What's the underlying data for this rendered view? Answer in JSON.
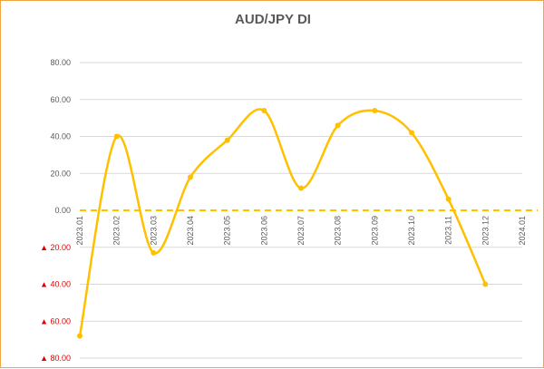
{
  "chart_data": {
    "type": "line",
    "title": "AUD/JPY  DI",
    "xlabel": "",
    "ylabel": "",
    "ylim": [
      -80,
      80
    ],
    "y_ticks": [
      80,
      60,
      40,
      20,
      0,
      -20,
      -40,
      -60,
      -80
    ],
    "y_tick_labels": [
      "80.00",
      "60.00",
      "40.00",
      "20.00",
      "0.00",
      "▲ 20.00",
      "▲ 40.00",
      "▲ 60.00",
      "▲ 80.00"
    ],
    "categories": [
      "2023.01",
      "2023.02",
      "2023.03",
      "2023.04",
      "2023.05",
      "2023.06",
      "2023.07",
      "2023.08",
      "2023.09",
      "2023.10",
      "2023.11",
      "2023.12",
      "2024.01"
    ],
    "series": [
      {
        "values": [
          -68,
          40,
          -23,
          18,
          38,
          54,
          12,
          46,
          54,
          42,
          6,
          -40,
          null
        ]
      }
    ],
    "grid": true,
    "legend": "none",
    "zero_line_style": "dashed",
    "colors": {
      "line": "#ffc000",
      "zero_line": "#ffc000",
      "grid": "#d9d9d9",
      "negative_label": "#e00000",
      "text": "#595959",
      "border": "#f2a640"
    }
  }
}
